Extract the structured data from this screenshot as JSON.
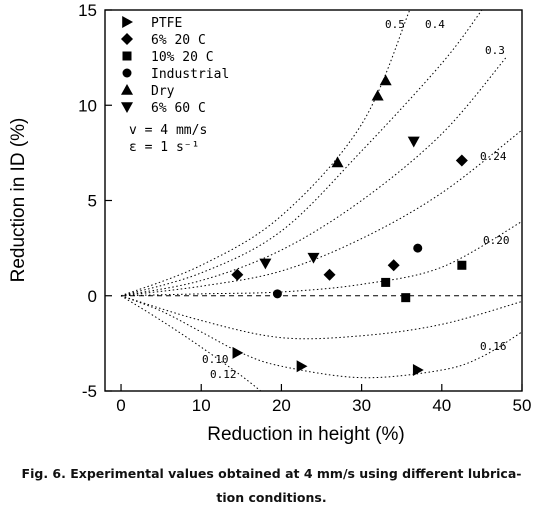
{
  "chart_data": {
    "type": "scatter",
    "title": "",
    "xlabel": "Reduction in height (%)",
    "ylabel": "Reduction in ID (%)",
    "xlim": [
      -2,
      50
    ],
    "ylim": [
      -5,
      15
    ],
    "xticks": [
      "0",
      "10",
      "20",
      "30",
      "40",
      "50"
    ],
    "yticks": [
      "-5",
      "0",
      "5",
      "10",
      "15"
    ],
    "grid": false,
    "legend_position": "top-left",
    "series": [
      {
        "name": "PTFE",
        "marker": "triangle-right",
        "points": [
          [
            14.5,
            -3.0
          ],
          [
            22.5,
            -3.7
          ],
          [
            37.0,
            -3.9
          ]
        ]
      },
      {
        "name": "6% 20 C",
        "marker": "diamond",
        "points": [
          [
            14.5,
            1.1
          ],
          [
            26.0,
            1.1
          ],
          [
            34.0,
            1.6
          ],
          [
            42.5,
            7.1
          ]
        ]
      },
      {
        "name": "10% 20 C",
        "marker": "square",
        "points": [
          [
            33.0,
            0.7
          ],
          [
            35.5,
            -0.1
          ],
          [
            42.5,
            1.6
          ]
        ]
      },
      {
        "name": "Industrial",
        "marker": "circle",
        "points": [
          [
            19.5,
            0.1
          ],
          [
            37.0,
            2.5
          ]
        ]
      },
      {
        "name": "Dry",
        "marker": "triangle-up",
        "points": [
          [
            27.0,
            7.0
          ],
          [
            32.0,
            10.5
          ],
          [
            33.0,
            11.3
          ]
        ]
      },
      {
        "name": "6% 60 C",
        "marker": "triangle-down",
        "points": [
          [
            18.0,
            1.7
          ],
          [
            24.0,
            2.0
          ],
          [
            36.5,
            8.1
          ]
        ]
      }
    ],
    "conditions": [
      "v = 4 mm/s",
      "ε = 1 s⁻¹"
    ],
    "friction_curves": [
      {
        "label": "0.5",
        "points": [
          [
            0,
            0
          ],
          [
            10,
            1.6
          ],
          [
            20,
            4.2
          ],
          [
            30,
            9.0
          ],
          [
            36,
            15.0
          ]
        ]
      },
      {
        "label": "0.4",
        "points": [
          [
            0,
            0
          ],
          [
            10,
            1.2
          ],
          [
            20,
            3.4
          ],
          [
            30,
            7.6
          ],
          [
            40,
            12.2
          ],
          [
            45,
            15.0
          ]
        ]
      },
      {
        "label": "0.3",
        "points": [
          [
            0,
            0
          ],
          [
            10,
            0.8
          ],
          [
            20,
            2.4
          ],
          [
            30,
            5.0
          ],
          [
            40,
            8.5
          ],
          [
            48,
            12.5
          ]
        ]
      },
      {
        "label": "0.24",
        "points": [
          [
            0,
            0
          ],
          [
            10,
            0.5
          ],
          [
            20,
            1.3
          ],
          [
            30,
            3.0
          ],
          [
            40,
            5.4
          ],
          [
            50,
            8.7
          ]
        ]
      },
      {
        "label": "0.20",
        "points": [
          [
            0,
            0
          ],
          [
            10,
            0.1
          ],
          [
            20,
            0.2
          ],
          [
            30,
            0.6
          ],
          [
            40,
            1.5
          ],
          [
            50,
            3.9
          ]
        ]
      },
      {
        "label": "0.16",
        "points": [
          [
            0,
            0
          ],
          [
            10,
            -1.3
          ],
          [
            20,
            -2.2
          ],
          [
            30,
            -2.1
          ],
          [
            40,
            -1.5
          ],
          [
            50,
            -0.3
          ]
        ]
      },
      {
        "label": "0.12",
        "points": [
          [
            0,
            0
          ],
          [
            5,
            -1.3
          ],
          [
            10,
            -2.7
          ],
          [
            15,
            -4.2
          ],
          [
            18,
            -5.2
          ]
        ]
      },
      {
        "label": "0.10",
        "points": [
          [
            0,
            0
          ],
          [
            5,
            -0.8
          ],
          [
            10,
            -1.9
          ],
          [
            15,
            -3.0
          ],
          [
            20,
            -3.7
          ],
          [
            30,
            -4.3
          ],
          [
            40,
            -3.9
          ],
          [
            45,
            -3.2
          ],
          [
            50,
            -1.9
          ]
        ]
      }
    ],
    "dashed_zero_line": true
  },
  "caption": {
    "line1": "Fig. 6. Experimental values obtained at 4 mm/s using different lubrica-",
    "line2": "tion conditions."
  }
}
